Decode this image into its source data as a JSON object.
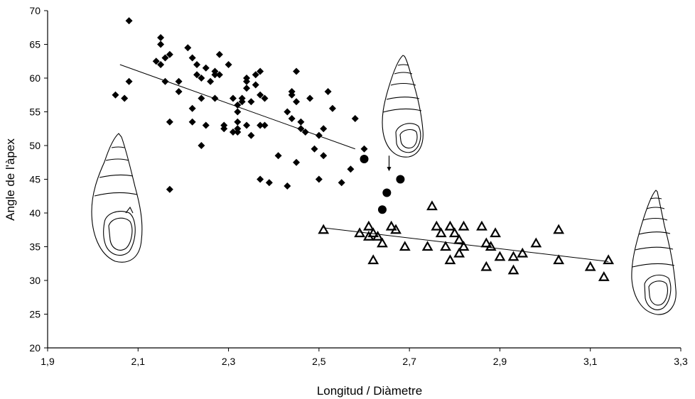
{
  "chart_data": {
    "type": "scatter",
    "xlabel": "Longitud / Diàmetre",
    "ylabel": "Angle de l'àpex",
    "xlim": [
      1.9,
      3.3
    ],
    "ylim": [
      20,
      70
    ],
    "x_ticks": [
      "1,9",
      "2,1",
      "2,3",
      "2,5",
      "2,7",
      "2,9",
      "3,1",
      "3,3"
    ],
    "y_ticks": [
      "20",
      "25",
      "30",
      "35",
      "40",
      "45",
      "50",
      "55",
      "60",
      "65",
      "70"
    ],
    "grid": false,
    "legend": "none",
    "series": [
      {
        "marker": "diamond",
        "color": "#000000",
        "points": [
          [
            2.08,
            68.5
          ],
          [
            2.05,
            57.5
          ],
          [
            2.07,
            57.0
          ],
          [
            2.08,
            59.5
          ],
          [
            2.14,
            62.5
          ],
          [
            2.15,
            66.0
          ],
          [
            2.15,
            65.0
          ],
          [
            2.16,
            63.0
          ],
          [
            2.15,
            62.0
          ],
          [
            2.17,
            63.5
          ],
          [
            2.16,
            59.5
          ],
          [
            2.17,
            53.5
          ],
          [
            2.17,
            43.5
          ],
          [
            2.19,
            58.0
          ],
          [
            2.19,
            59.5
          ],
          [
            2.21,
            64.5
          ],
          [
            2.22,
            55.5
          ],
          [
            2.22,
            53.5
          ],
          [
            2.22,
            63.0
          ],
          [
            2.23,
            60.5
          ],
          [
            2.23,
            62.0
          ],
          [
            2.24,
            60.0
          ],
          [
            2.24,
            50.0
          ],
          [
            2.24,
            57.0
          ],
          [
            2.25,
            53.0
          ],
          [
            2.25,
            61.5
          ],
          [
            2.26,
            59.5
          ],
          [
            2.27,
            60.5
          ],
          [
            2.27,
            61.0
          ],
          [
            2.27,
            57.0
          ],
          [
            2.28,
            63.5
          ],
          [
            2.28,
            60.5
          ],
          [
            2.29,
            53.0
          ],
          [
            2.29,
            52.5
          ],
          [
            2.3,
            62.0
          ],
          [
            2.31,
            57.0
          ],
          [
            2.31,
            52.0
          ],
          [
            2.32,
            56.0
          ],
          [
            2.32,
            52.5
          ],
          [
            2.32,
            55.0
          ],
          [
            2.32,
            53.5
          ],
          [
            2.32,
            52.0
          ],
          [
            2.33,
            57.0
          ],
          [
            2.33,
            56.5
          ],
          [
            2.34,
            59.5
          ],
          [
            2.34,
            58.5
          ],
          [
            2.34,
            60.0
          ],
          [
            2.34,
            53.0
          ],
          [
            2.35,
            56.5
          ],
          [
            2.35,
            51.5
          ],
          [
            2.36,
            59.0
          ],
          [
            2.36,
            60.5
          ],
          [
            2.37,
            61.0
          ],
          [
            2.37,
            57.5
          ],
          [
            2.37,
            45.0
          ],
          [
            2.37,
            53.0
          ],
          [
            2.38,
            57.0
          ],
          [
            2.38,
            53.0
          ],
          [
            2.39,
            44.5
          ],
          [
            2.41,
            48.5
          ],
          [
            2.43,
            44.0
          ],
          [
            2.43,
            55.0
          ],
          [
            2.44,
            58.0
          ],
          [
            2.44,
            57.5
          ],
          [
            2.44,
            54.0
          ],
          [
            2.45,
            61.0
          ],
          [
            2.45,
            56.5
          ],
          [
            2.45,
            47.5
          ],
          [
            2.46,
            53.5
          ],
          [
            2.46,
            52.5
          ],
          [
            2.47,
            52.0
          ],
          [
            2.48,
            57.0
          ],
          [
            2.49,
            49.5
          ],
          [
            2.5,
            51.5
          ],
          [
            2.5,
            45.0
          ],
          [
            2.51,
            48.5
          ],
          [
            2.51,
            52.5
          ],
          [
            2.52,
            58.0
          ],
          [
            2.53,
            55.5
          ],
          [
            2.55,
            44.5
          ],
          [
            2.57,
            46.5
          ],
          [
            2.58,
            54.0
          ],
          [
            2.6,
            49.5
          ]
        ]
      },
      {
        "marker": "circle",
        "color": "#000000",
        "points": [
          [
            2.6,
            48.0
          ],
          [
            2.64,
            40.5
          ],
          [
            2.65,
            43.0
          ],
          [
            2.68,
            45.0
          ]
        ]
      },
      {
        "marker": "triangle-open",
        "color": "#000000",
        "points": [
          [
            2.51,
            37.5
          ],
          [
            2.59,
            37.0
          ],
          [
            2.61,
            38.0
          ],
          [
            2.61,
            36.5
          ],
          [
            2.62,
            37.0
          ],
          [
            2.62,
            33.0
          ],
          [
            2.63,
            36.5
          ],
          [
            2.64,
            35.5
          ],
          [
            2.66,
            38.0
          ],
          [
            2.67,
            37.5
          ],
          [
            2.69,
            35.0
          ],
          [
            2.74,
            35.0
          ],
          [
            2.75,
            41.0
          ],
          [
            2.76,
            38.0
          ],
          [
            2.77,
            37.0
          ],
          [
            2.78,
            35.0
          ],
          [
            2.79,
            38.0
          ],
          [
            2.79,
            33.0
          ],
          [
            2.8,
            37.0
          ],
          [
            2.81,
            36.0
          ],
          [
            2.81,
            34.0
          ],
          [
            2.82,
            35.0
          ],
          [
            2.82,
            38.0
          ],
          [
            2.86,
            38.0
          ],
          [
            2.87,
            35.5
          ],
          [
            2.87,
            32.0
          ],
          [
            2.88,
            35.0
          ],
          [
            2.89,
            37.0
          ],
          [
            2.9,
            33.5
          ],
          [
            2.93,
            33.5
          ],
          [
            2.93,
            31.5
          ],
          [
            2.95,
            34.0
          ],
          [
            2.98,
            35.5
          ],
          [
            3.03,
            37.5
          ],
          [
            3.03,
            33.0
          ],
          [
            3.1,
            32.0
          ],
          [
            3.13,
            30.5
          ],
          [
            3.14,
            33.0
          ]
        ]
      }
    ],
    "trend_lines": [
      {
        "x": [
          2.06,
          2.58
        ],
        "y": [
          62.0,
          49.5
        ]
      },
      {
        "x": [
          2.51,
          3.14
        ],
        "y": [
          37.8,
          32.8
        ]
      }
    ],
    "annotations": [
      {
        "type": "arrow",
        "from": [
          2.655,
          48.5
        ],
        "to": [
          2.655,
          46.2
        ]
      }
    ]
  }
}
